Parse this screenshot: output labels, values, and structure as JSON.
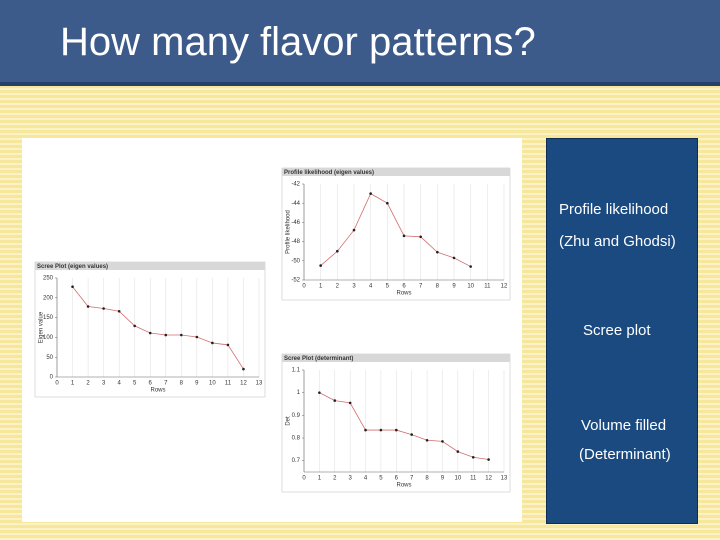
{
  "title": "How many flavor patterns?",
  "panel": [
    "Profile likelihood",
    "(Zhu and Ghodsi)",
    "Scree plot",
    "Volume filled",
    "(Determinant)"
  ],
  "chart_data": [
    {
      "type": "line",
      "title": "Scree Plot (eigen values)",
      "x_label": "Rows",
      "y_label": "Eigen value",
      "x": [
        1,
        2,
        3,
        4,
        5,
        6,
        7,
        8,
        9,
        10,
        11,
        12
      ],
      "series": [
        {
          "color": "#c03030",
          "values": [
            228,
            178,
            173,
            166,
            129,
            111,
            106,
            106,
            101,
            86,
            81,
            20
          ]
        }
      ],
      "xlim": [
        0,
        13
      ],
      "xticks": [
        0,
        1,
        2,
        3,
        4,
        5,
        6,
        7,
        8,
        9,
        10,
        11,
        12,
        13
      ],
      "ylim": [
        0,
        250
      ],
      "yticks": [
        0,
        50,
        100,
        150,
        200,
        250
      ],
      "grid": true
    },
    {
      "type": "line",
      "title": "Profile likelihood (eigen values)",
      "x_label": "Rows",
      "y_label": "Profile likelihood",
      "x": [
        1,
        2,
        3,
        4,
        5,
        6,
        7,
        8,
        9,
        10
      ],
      "series": [
        {
          "color": "#c03030",
          "values": [
            -50.5,
            -49,
            -46.8,
            -43,
            -44,
            -47.4,
            -47.5,
            -49.1,
            -49.7,
            -50.6
          ]
        }
      ],
      "xlim": [
        0,
        12
      ],
      "xticks": [
        0,
        1,
        2,
        3,
        4,
        5,
        6,
        7,
        8,
        9,
        10,
        11,
        12
      ],
      "ylim": [
        -52,
        -42
      ],
      "yticks": [
        -52,
        -50,
        -48,
        -46,
        -44,
        -42
      ],
      "grid": true
    },
    {
      "type": "line",
      "title": "Scree Plot (determinant)",
      "x_label": "Rows",
      "y_label": "Det",
      "x": [
        1,
        2,
        3,
        4,
        5,
        6,
        7,
        8,
        9,
        10,
        11,
        12
      ],
      "series": [
        {
          "color": "#c03030",
          "values": [
            1,
            0.965,
            0.955,
            0.835,
            0.835,
            0.835,
            0.815,
            0.79,
            0.785,
            0.74,
            0.715,
            0.705
          ]
        }
      ],
      "xlim": [
        0,
        13
      ],
      "xticks": [
        0,
        1,
        2,
        3,
        4,
        5,
        6,
        7,
        8,
        9,
        10,
        11,
        12,
        13
      ],
      "ylim": [
        0.65,
        1.1
      ],
      "yticks": [
        0.7,
        0.8,
        0.9,
        1,
        1.1
      ],
      "grid": true
    }
  ]
}
